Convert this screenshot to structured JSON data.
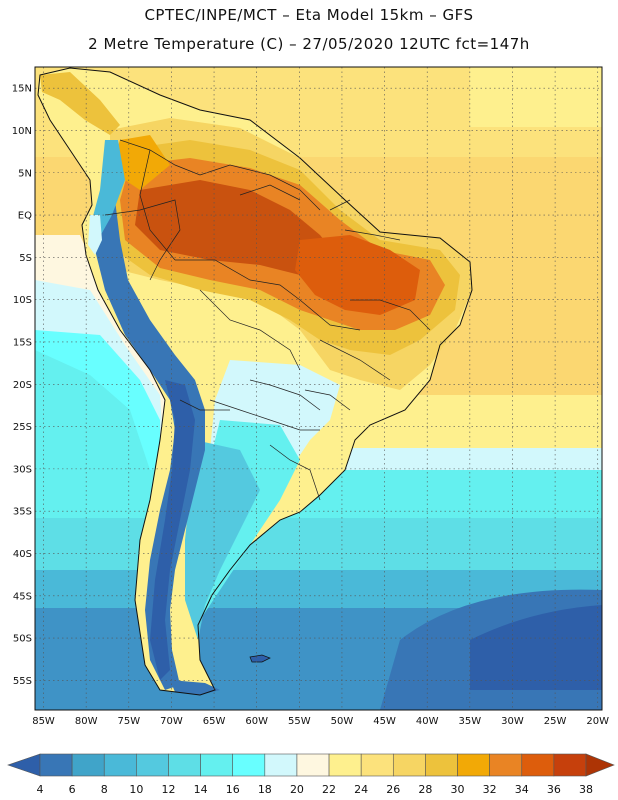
{
  "header": {
    "line1": "CPTEC/INPE/MCT –  Eta Model 15km – GFS",
    "line2": "2 Metre Temperature (C) – 27/05/2020 12UTC fct=147h"
  },
  "map": {
    "lat_labels": [
      "15N",
      "10N",
      "5N",
      "EQ",
      "5S",
      "10S",
      "15S",
      "20S",
      "25S",
      "30S",
      "35S",
      "40S",
      "45S",
      "50S",
      "55S"
    ],
    "lon_labels": [
      "85W",
      "80W",
      "75W",
      "70W",
      "65W",
      "60W",
      "55W",
      "50W",
      "45W",
      "40W",
      "35W",
      "30W",
      "25W",
      "20W"
    ],
    "extent": {
      "lon_min": -86,
      "lon_max": -19.5,
      "lat_min": -58.5,
      "lat_max": 17.5
    }
  },
  "colorbar": {
    "labels": [
      "4",
      "6",
      "8",
      "10",
      "12",
      "14",
      "16",
      "18",
      "20",
      "22",
      "24",
      "26",
      "28",
      "30",
      "32",
      "34",
      "36",
      "38"
    ],
    "colors": [
      "#2e5fa9",
      "#3876b6",
      "#40a4c9",
      "#4ab9d8",
      "#54c9df",
      "#5edee6",
      "#64f0ef",
      "#68ffff",
      "#d2f8fc",
      "#fef7e0",
      "#fef08e",
      "#fce27c",
      "#f6d563",
      "#edc23c",
      "#f2a906",
      "#e98424",
      "#dd5d0c",
      "#c6400c",
      "#ad3405"
    ]
  },
  "legend_colors": {
    "ocean_tropical": "#fbd771",
    "ocean_cool": "#5ad3e2",
    "ocean_cold": "#3f93c6",
    "land_hot": "#c9520f",
    "andes": "#2e5fa9"
  }
}
